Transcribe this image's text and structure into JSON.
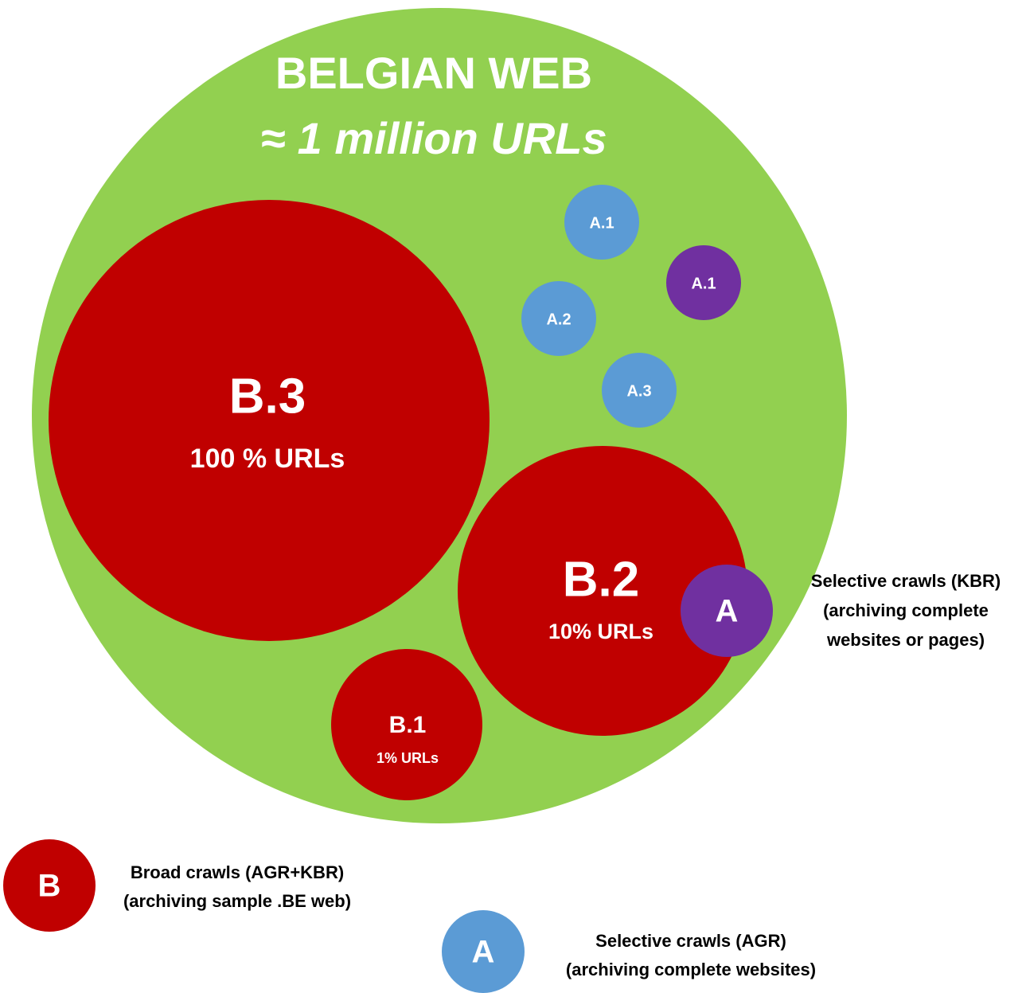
{
  "title": {
    "line1": "BELGIAN WEB",
    "line2": "≈ 1 million URLs"
  },
  "bubbles": [
    {
      "label": "B.3",
      "sublabel": "100 % URLs"
    },
    {
      "label": "B.2",
      "sublabel": "10% URLs"
    },
    {
      "label": "B.1",
      "sublabel": "1% URLs"
    },
    {
      "label": "A.1"
    },
    {
      "label": "A.1"
    },
    {
      "label": "A.2"
    },
    {
      "label": "A.3"
    }
  ],
  "legend": [
    {
      "symbol": "A",
      "lines": [
        "Selective crawls (KBR)",
        "(archiving complete",
        "websites or pages)"
      ]
    },
    {
      "symbol": "B",
      "lines": [
        "Broad crawls (AGR+KBR)",
        "(archiving sample .BE web)"
      ]
    },
    {
      "symbol": "A",
      "lines": [
        "Selective crawls (AGR)",
        "(archiving complete websites)"
      ]
    }
  ]
}
